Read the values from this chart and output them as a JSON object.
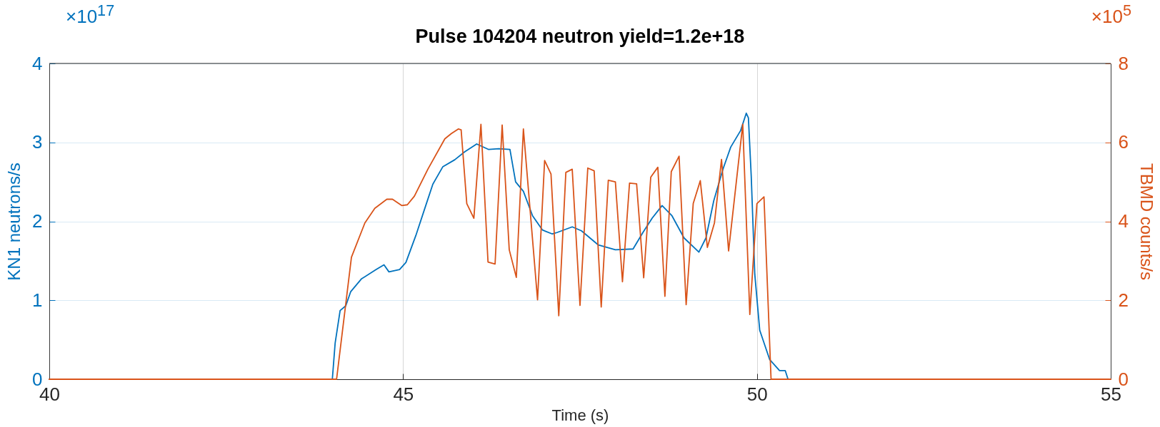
{
  "chart_data": {
    "type": "line",
    "title": "Pulse 104204 neutron yield=1.2e+18",
    "xlabel": "Time (s)",
    "ylabel": "KN1 neutrons/s",
    "y2label": "TBMD counts/s",
    "xlim": [
      40,
      55
    ],
    "xticks": [
      40,
      45,
      50,
      55
    ],
    "ylim": [
      0,
      4
    ],
    "yticks": [
      0,
      1,
      2,
      3,
      4
    ],
    "y2lim": [
      0,
      8
    ],
    "y2ticks": [
      0,
      2,
      4,
      6,
      8
    ],
    "grid": true,
    "annotations": [
      "×10$^{17}$",
      "×10$^{5}$"
    ],
    "series": [
      {
        "color": "#0072bd",
        "x": [
          40,
          44.0,
          44.04,
          44.11,
          44.19,
          44.26,
          44.41,
          44.62,
          44.73,
          44.8,
          44.95,
          45.04,
          45.18,
          45.32,
          45.42,
          45.56,
          45.73,
          45.87,
          46.04,
          46.21,
          46.35,
          46.51,
          46.59,
          46.7,
          46.83,
          46.97,
          47.11,
          47.18,
          47.39,
          47.52,
          47.76,
          48.0,
          48.25,
          48.39,
          48.52,
          48.66,
          48.8,
          48.97,
          49.18,
          49.28,
          49.39,
          49.52,
          49.63,
          49.77,
          49.85,
          49.88,
          49.92,
          49.97,
          50.04,
          50.18,
          50.32,
          50.4,
          50.44,
          55
        ],
        "values": [
          0,
          0,
          0.46,
          0.87,
          0.93,
          1.11,
          1.27,
          1.39,
          1.45,
          1.36,
          1.39,
          1.48,
          1.82,
          2.2,
          2.47,
          2.69,
          2.78,
          2.88,
          2.98,
          2.91,
          2.92,
          2.91,
          2.5,
          2.38,
          2.07,
          1.89,
          1.84,
          1.86,
          1.93,
          1.88,
          1.7,
          1.64,
          1.65,
          1.86,
          2.04,
          2.2,
          2.07,
          1.79,
          1.61,
          1.79,
          2.26,
          2.66,
          2.94,
          3.15,
          3.37,
          3.31,
          2.57,
          1.33,
          0.62,
          0.25,
          0.11,
          0.11,
          0,
          0
        ]
      },
      {
        "color": "#d95319",
        "axis": "y2",
        "x": [
          40,
          44.06,
          44.27,
          44.46,
          44.6,
          44.77,
          44.85,
          44.98,
          45.06,
          45.16,
          45.35,
          45.59,
          45.68,
          45.78,
          45.82,
          45.9,
          46.0,
          46.1,
          46.2,
          46.3,
          46.4,
          46.5,
          46.6,
          46.7,
          46.9,
          47.0,
          47.09,
          47.2,
          47.3,
          47.39,
          47.5,
          47.61,
          47.7,
          47.8,
          47.9,
          48.0,
          48.1,
          48.2,
          48.3,
          48.4,
          48.5,
          48.6,
          48.7,
          48.79,
          48.9,
          49.0,
          49.1,
          49.2,
          49.3,
          49.4,
          49.5,
          49.6,
          49.8,
          49.9,
          50.0,
          50.1,
          50.2,
          55
        ],
        "values": [
          0,
          0,
          3.09,
          3.96,
          4.33,
          4.56,
          4.56,
          4.4,
          4.42,
          4.64,
          5.32,
          6.09,
          6.22,
          6.34,
          6.32,
          4.45,
          4.08,
          6.46,
          2.97,
          2.92,
          6.44,
          3.28,
          2.58,
          6.34,
          2.01,
          5.54,
          5.2,
          1.61,
          5.24,
          5.32,
          1.87,
          5.35,
          5.28,
          1.83,
          5.04,
          5.0,
          2.47,
          4.97,
          4.95,
          2.57,
          5.12,
          5.37,
          2.1,
          5.26,
          5.65,
          1.89,
          4.45,
          5.03,
          3.34,
          3.96,
          5.57,
          3.25,
          6.46,
          1.64,
          4.45,
          4.62,
          0,
          0
        ]
      }
    ]
  }
}
